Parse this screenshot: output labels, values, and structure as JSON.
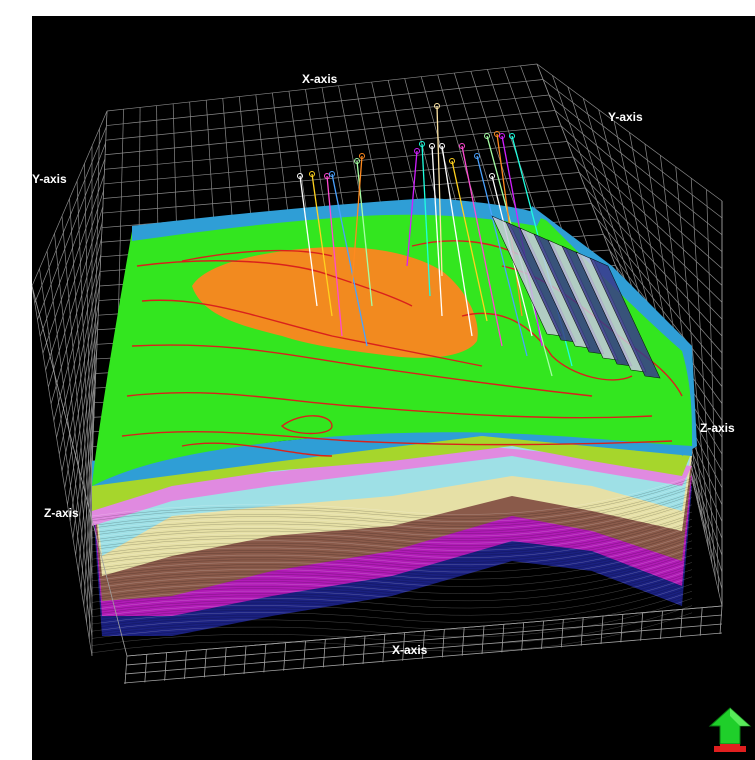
{
  "axes": {
    "x_top": "X-axis",
    "x_bottom": "X-axis",
    "y_left": "Y-axis",
    "y_right": "Y-axis",
    "z_left": "Z-axis",
    "z_right": "Z-axis"
  },
  "icons": {
    "navigation": "green-up-arrow-icon"
  },
  "colors": {
    "background": "#000000",
    "grid": "#8a8a8a",
    "top_surface": "#33e61f",
    "orange_zone": "#f28a1f",
    "contours": "#d9211c",
    "top_band": "#2f9ed6",
    "layer_lime": "#a6d62c",
    "layer_pink": "#e08ae0",
    "layer_cyan": "#9ee0e6",
    "layer_cream": "#e6e0a6",
    "layer_brown": "#8a5a4a",
    "layer_purple": "#b01bb6",
    "layer_navy": "#1a2080",
    "nav_green": "#1fcf2a",
    "nav_red": "#e01f1f"
  }
}
